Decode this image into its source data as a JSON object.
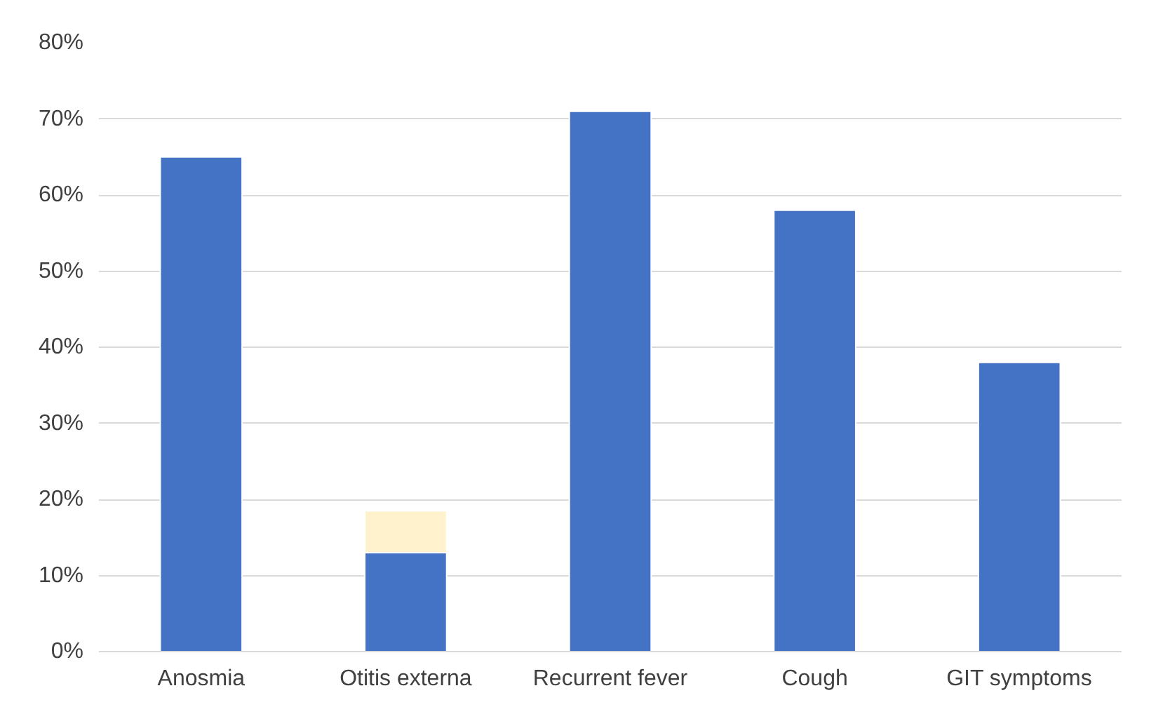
{
  "chart_data": {
    "type": "bar",
    "stacked": true,
    "categories": [
      "Anosmia",
      "Otitis externa",
      "Recurrent fever",
      "Cough",
      "GIT symptoms"
    ],
    "series": [
      {
        "color": "#4472c4",
        "values": [
          65,
          13,
          71,
          58,
          38
        ]
      },
      {
        "color": "#fff2cc",
        "values": [
          null,
          5.5,
          null,
          null,
          null
        ]
      }
    ],
    "ylim": [
      0,
      80
    ],
    "yticks": [
      {
        "value": 0,
        "label": "0%"
      },
      {
        "value": 10,
        "label": "10%"
      },
      {
        "value": 20,
        "label": "20%"
      },
      {
        "value": 30,
        "label": "30%"
      },
      {
        "value": 40,
        "label": "40%"
      },
      {
        "value": 50,
        "label": "50%"
      },
      {
        "value": 60,
        "label": "60%"
      },
      {
        "value": 70,
        "label": "70%"
      },
      {
        "value": 80,
        "label": "80%"
      }
    ],
    "grid": "y"
  }
}
